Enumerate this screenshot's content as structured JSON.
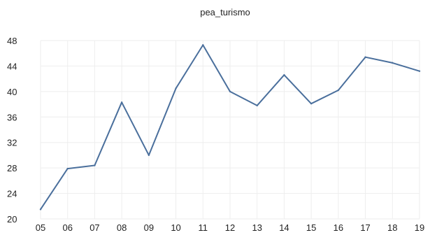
{
  "chart_data": {
    "type": "line",
    "title": "pea_turismo",
    "xlabel": "",
    "ylabel": "",
    "categories": [
      "05",
      "06",
      "07",
      "08",
      "09",
      "10",
      "11",
      "12",
      "13",
      "14",
      "15",
      "16",
      "17",
      "18",
      "19"
    ],
    "series": [
      {
        "values": [
          21.5,
          27.9,
          28.4,
          38.3,
          30.0,
          40.5,
          47.3,
          40.0,
          37.8,
          42.6,
          38.1,
          40.2,
          45.4,
          44.5,
          43.2
        ]
      }
    ],
    "y_ticks": [
      "20",
      "24",
      "28",
      "32",
      "36",
      "40",
      "44",
      "48"
    ],
    "ylim": [
      20,
      48
    ],
    "grid": true,
    "line_color": "#4a6f9c",
    "grid_color": "#eeeeee"
  }
}
